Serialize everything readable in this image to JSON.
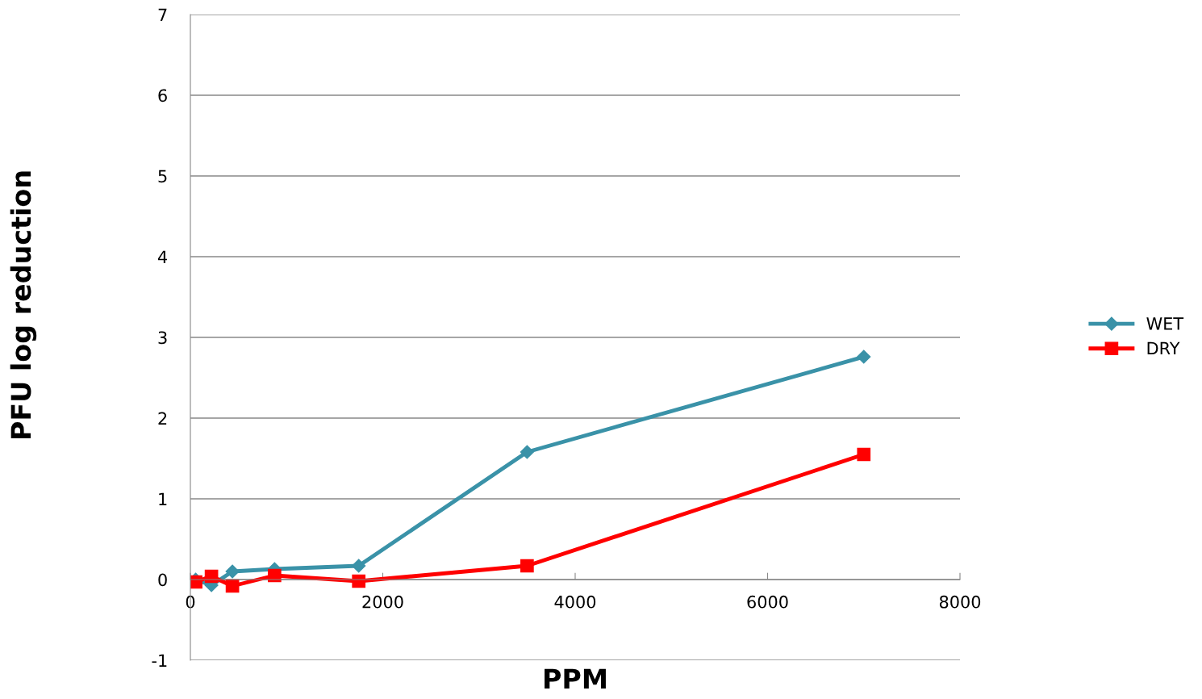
{
  "chart_data": {
    "type": "line",
    "xlabel": "PPM",
    "ylabel": "PFU log reduction",
    "xlim": [
      0,
      8000
    ],
    "xticks": [
      0,
      2000,
      4000,
      6000,
      8000
    ],
    "ylim": [
      -1,
      7
    ],
    "yticks": [
      -1,
      0,
      1,
      2,
      3,
      4,
      5,
      6,
      7
    ],
    "grid": "y",
    "legend": "right",
    "x": [
      55,
      219,
      437,
      875,
      1750,
      3500,
      7000
    ],
    "series": [
      {
        "name": "WET",
        "color": "#3a92a8",
        "marker": "diamond",
        "values": [
          0.0,
          -0.07,
          0.1,
          0.13,
          0.17,
          1.58,
          2.76
        ]
      },
      {
        "name": "DRY",
        "color": "#ff0000",
        "marker": "square",
        "values": [
          -0.03,
          0.04,
          -0.08,
          0.05,
          -0.02,
          0.17,
          1.55
        ]
      }
    ]
  }
}
